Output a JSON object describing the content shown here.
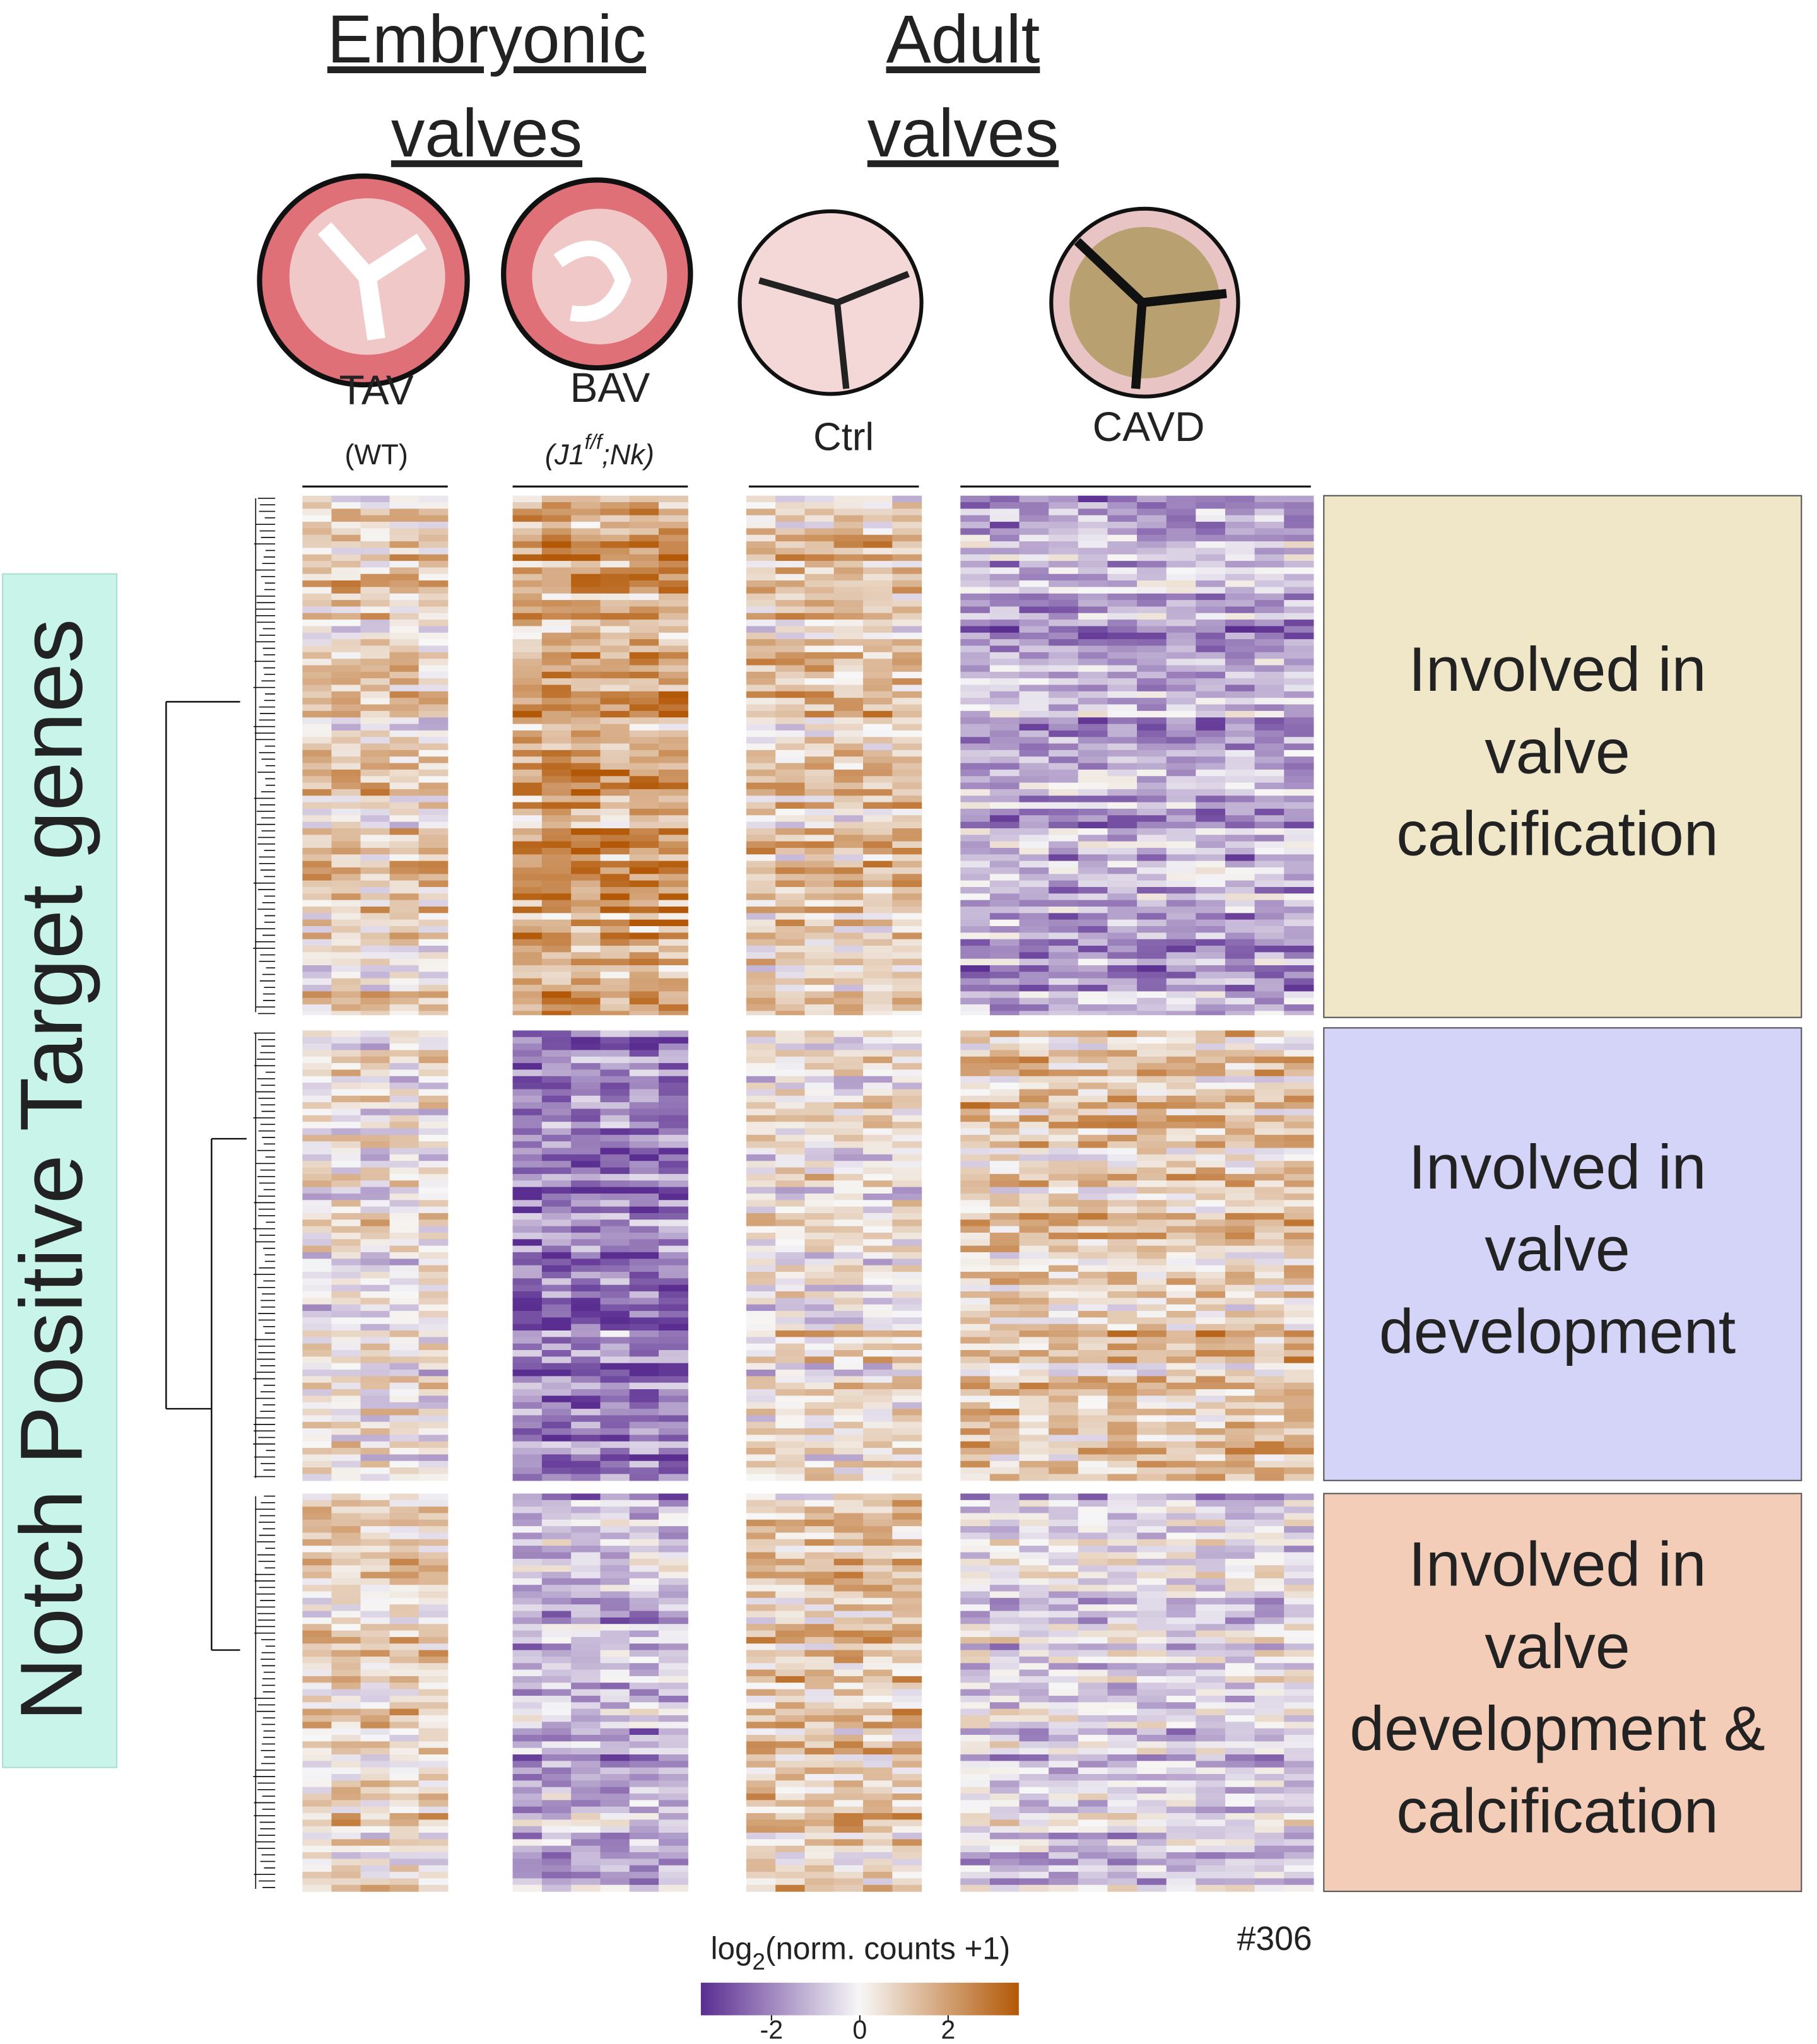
{
  "headers": [
    {
      "lines": [
        "Embryonic",
        "valves"
      ]
    },
    {
      "lines": [
        "Adult",
        "valves"
      ]
    }
  ],
  "samples": [
    {
      "label": "TAV",
      "sublabel": {
        "base": "(WT)"
      }
    },
    {
      "label": "BAV",
      "sublabel": {
        "base": "(J1",
        "sup": "f/f",
        "rest": ";Nk)"
      }
    },
    {
      "label": "Ctrl"
    },
    {
      "label": "CAVD"
    }
  ],
  "y_label": "Notch Positive Target genes",
  "clusters": [
    {
      "lines": [
        "Involved in",
        "valve",
        "calcification"
      ]
    },
    {
      "lines": [
        "Involved in",
        "valve",
        "development"
      ]
    },
    {
      "lines": [
        "Involved in",
        "valve",
        "development &",
        "calcification"
      ]
    }
  ],
  "legend": {
    "title": {
      "base": "log",
      "sub": "2",
      "rest": "(norm. counts +1)"
    },
    "ticks": [
      -2,
      0,
      2
    ],
    "lim": [
      -3.6,
      3.6
    ]
  },
  "note": "#306"
}
